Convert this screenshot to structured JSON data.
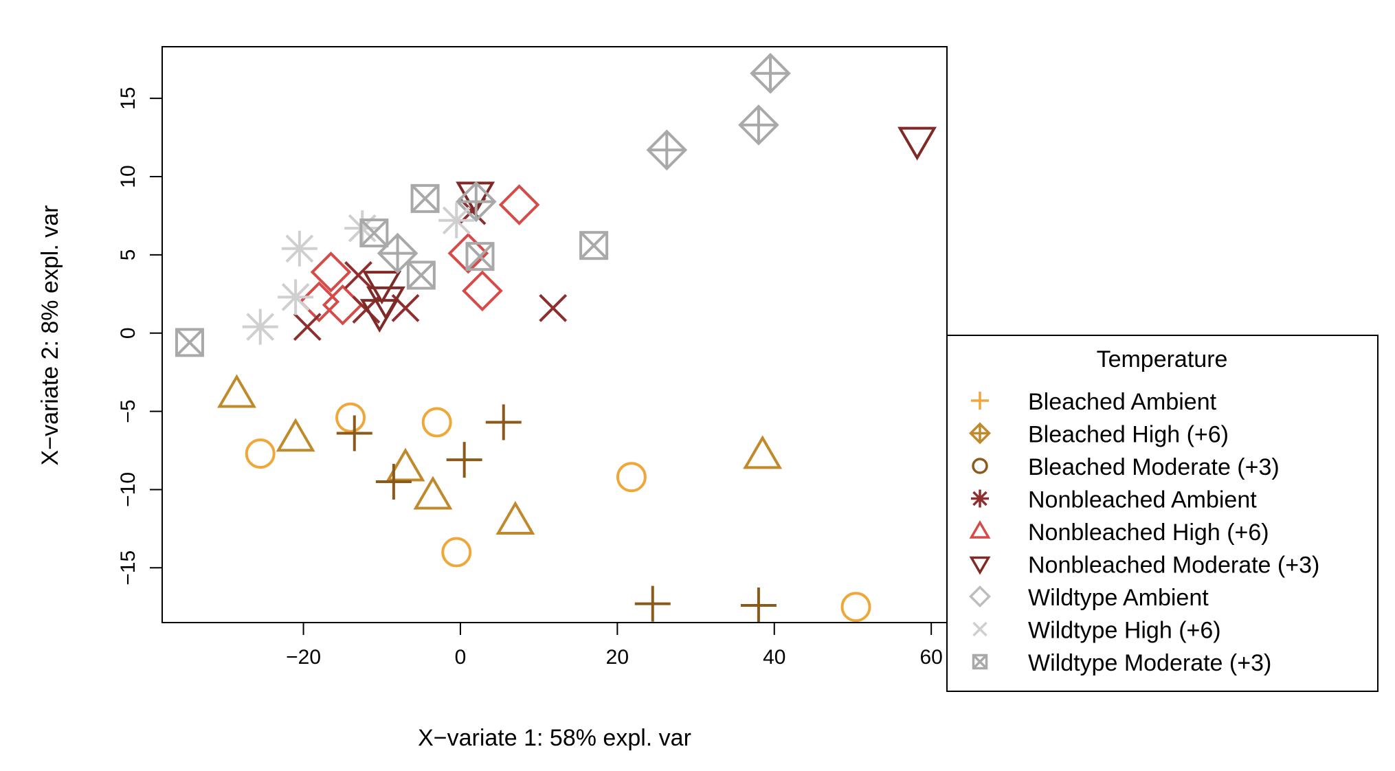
{
  "chart_data": {
    "type": "scatter",
    "xlabel": "X−variate 1: 58% expl. var",
    "ylabel": "X−variate 2: 8% expl. var",
    "xlim": [
      -38,
      62
    ],
    "ylim": [
      -18.5,
      18.3
    ],
    "x_ticks": [
      -20,
      0,
      20,
      40,
      60
    ],
    "x_tick_labels": [
      "−20",
      "0",
      "20",
      "40",
      "60"
    ],
    "y_ticks": [
      -15,
      -10,
      -5,
      0,
      5,
      10,
      15
    ],
    "y_tick_labels": [
      "−15",
      "−10",
      "−5",
      "0",
      "5",
      "10",
      "15"
    ],
    "grid": false,
    "legend": {
      "title": "Temperature",
      "placement": "right",
      "entries": [
        {
          "label": "Bleached Ambient",
          "marker": "plus",
          "color": "#F0A73A"
        },
        {
          "label": "Bleached High (+6)",
          "marker": "diamond-plus",
          "color": "#C08A2C"
        },
        {
          "label": "Bleached Moderate (+3)",
          "marker": "circle",
          "color": "#8B5A1B"
        },
        {
          "label": "Nonbleached Ambient",
          "marker": "asterisk",
          "color": "#8E2E2E"
        },
        {
          "label": "Nonbleached High (+6)",
          "marker": "triangle-up",
          "color": "#D64A48"
        },
        {
          "label": "Nonbleached Moderate (+3)",
          "marker": "triangle-down",
          "color": "#7F2A26"
        },
        {
          "label": "Wildtype Ambient",
          "marker": "diamond",
          "color": "#BDBDBD"
        },
        {
          "label": "Wildtype High (+6)",
          "marker": "cross",
          "color": "#CFCFCF"
        },
        {
          "label": "Wildtype Moderate (+3)",
          "marker": "square-x",
          "color": "#A9A9A9"
        }
      ]
    },
    "series": [
      {
        "marker": "circle",
        "color": "#F0A73A",
        "points": [
          [
            -25.5,
            -7.7
          ],
          [
            -14,
            -5.4
          ],
          [
            -3,
            -5.7
          ],
          [
            21.8,
            -9.2
          ],
          [
            -0.5,
            -14
          ],
          [
            50.4,
            -17.5
          ]
        ]
      },
      {
        "marker": "triangle-up",
        "color": "#C08A2C",
        "points": [
          [
            -28.5,
            -3.9
          ],
          [
            -21,
            -6.7
          ],
          [
            -7,
            -8.6
          ],
          [
            -3.5,
            -10.4
          ],
          [
            7,
            -12
          ],
          [
            38.5,
            -7.8
          ]
        ]
      },
      {
        "marker": "plus",
        "color": "#8B5A1B",
        "points": [
          [
            -13.5,
            -6.4
          ],
          [
            -8.5,
            -9.5
          ],
          [
            0.5,
            -8.1
          ],
          [
            5.5,
            -5.7
          ],
          [
            24.5,
            -17.3
          ],
          [
            38,
            -17.4
          ]
        ]
      },
      {
        "marker": "diamond",
        "color": "#D64A48",
        "points": [
          [
            -16.5,
            3.9
          ],
          [
            -18,
            2
          ],
          [
            -15,
            1.8
          ],
          [
            1,
            5.1
          ],
          [
            2.8,
            2.7
          ],
          [
            7.5,
            8.2
          ]
        ]
      },
      {
        "marker": "x",
        "color": "#8E2E2E",
        "points": [
          [
            -19.5,
            0.4
          ],
          [
            -13,
            3.7
          ],
          [
            -12,
            1.5
          ],
          [
            -7,
            1.6
          ],
          [
            1.5,
            7.8
          ],
          [
            11.8,
            1.6
          ]
        ]
      },
      {
        "marker": "triangle-down",
        "color": "#7F2A26",
        "points": [
          [
            -10,
            3.1
          ],
          [
            -9.5,
            2.1
          ],
          [
            -10.3,
            1.3
          ],
          [
            1.9,
            8.8
          ],
          [
            58.2,
            12.3
          ]
        ]
      },
      {
        "marker": "diamond-plus",
        "color": "#A9A9A9",
        "points": [
          [
            -8,
            5.1
          ],
          [
            2,
            8.4
          ],
          [
            26.3,
            11.7
          ],
          [
            38,
            13.3
          ],
          [
            39.5,
            16.6
          ]
        ]
      },
      {
        "marker": "asterisk",
        "color": "#CFCFCF",
        "points": [
          [
            -25.5,
            0.4
          ],
          [
            -21,
            2.3
          ],
          [
            -20.5,
            5.4
          ],
          [
            -12.5,
            6.7
          ],
          [
            -0.5,
            7.2
          ]
        ]
      },
      {
        "marker": "square-x",
        "color": "#A9A9A9",
        "points": [
          [
            -34.5,
            -0.6
          ],
          [
            -11,
            6.4
          ],
          [
            -4.5,
            8.6
          ],
          [
            -5,
            3.7
          ],
          [
            2.5,
            4.9
          ],
          [
            17,
            5.6
          ]
        ]
      }
    ]
  }
}
